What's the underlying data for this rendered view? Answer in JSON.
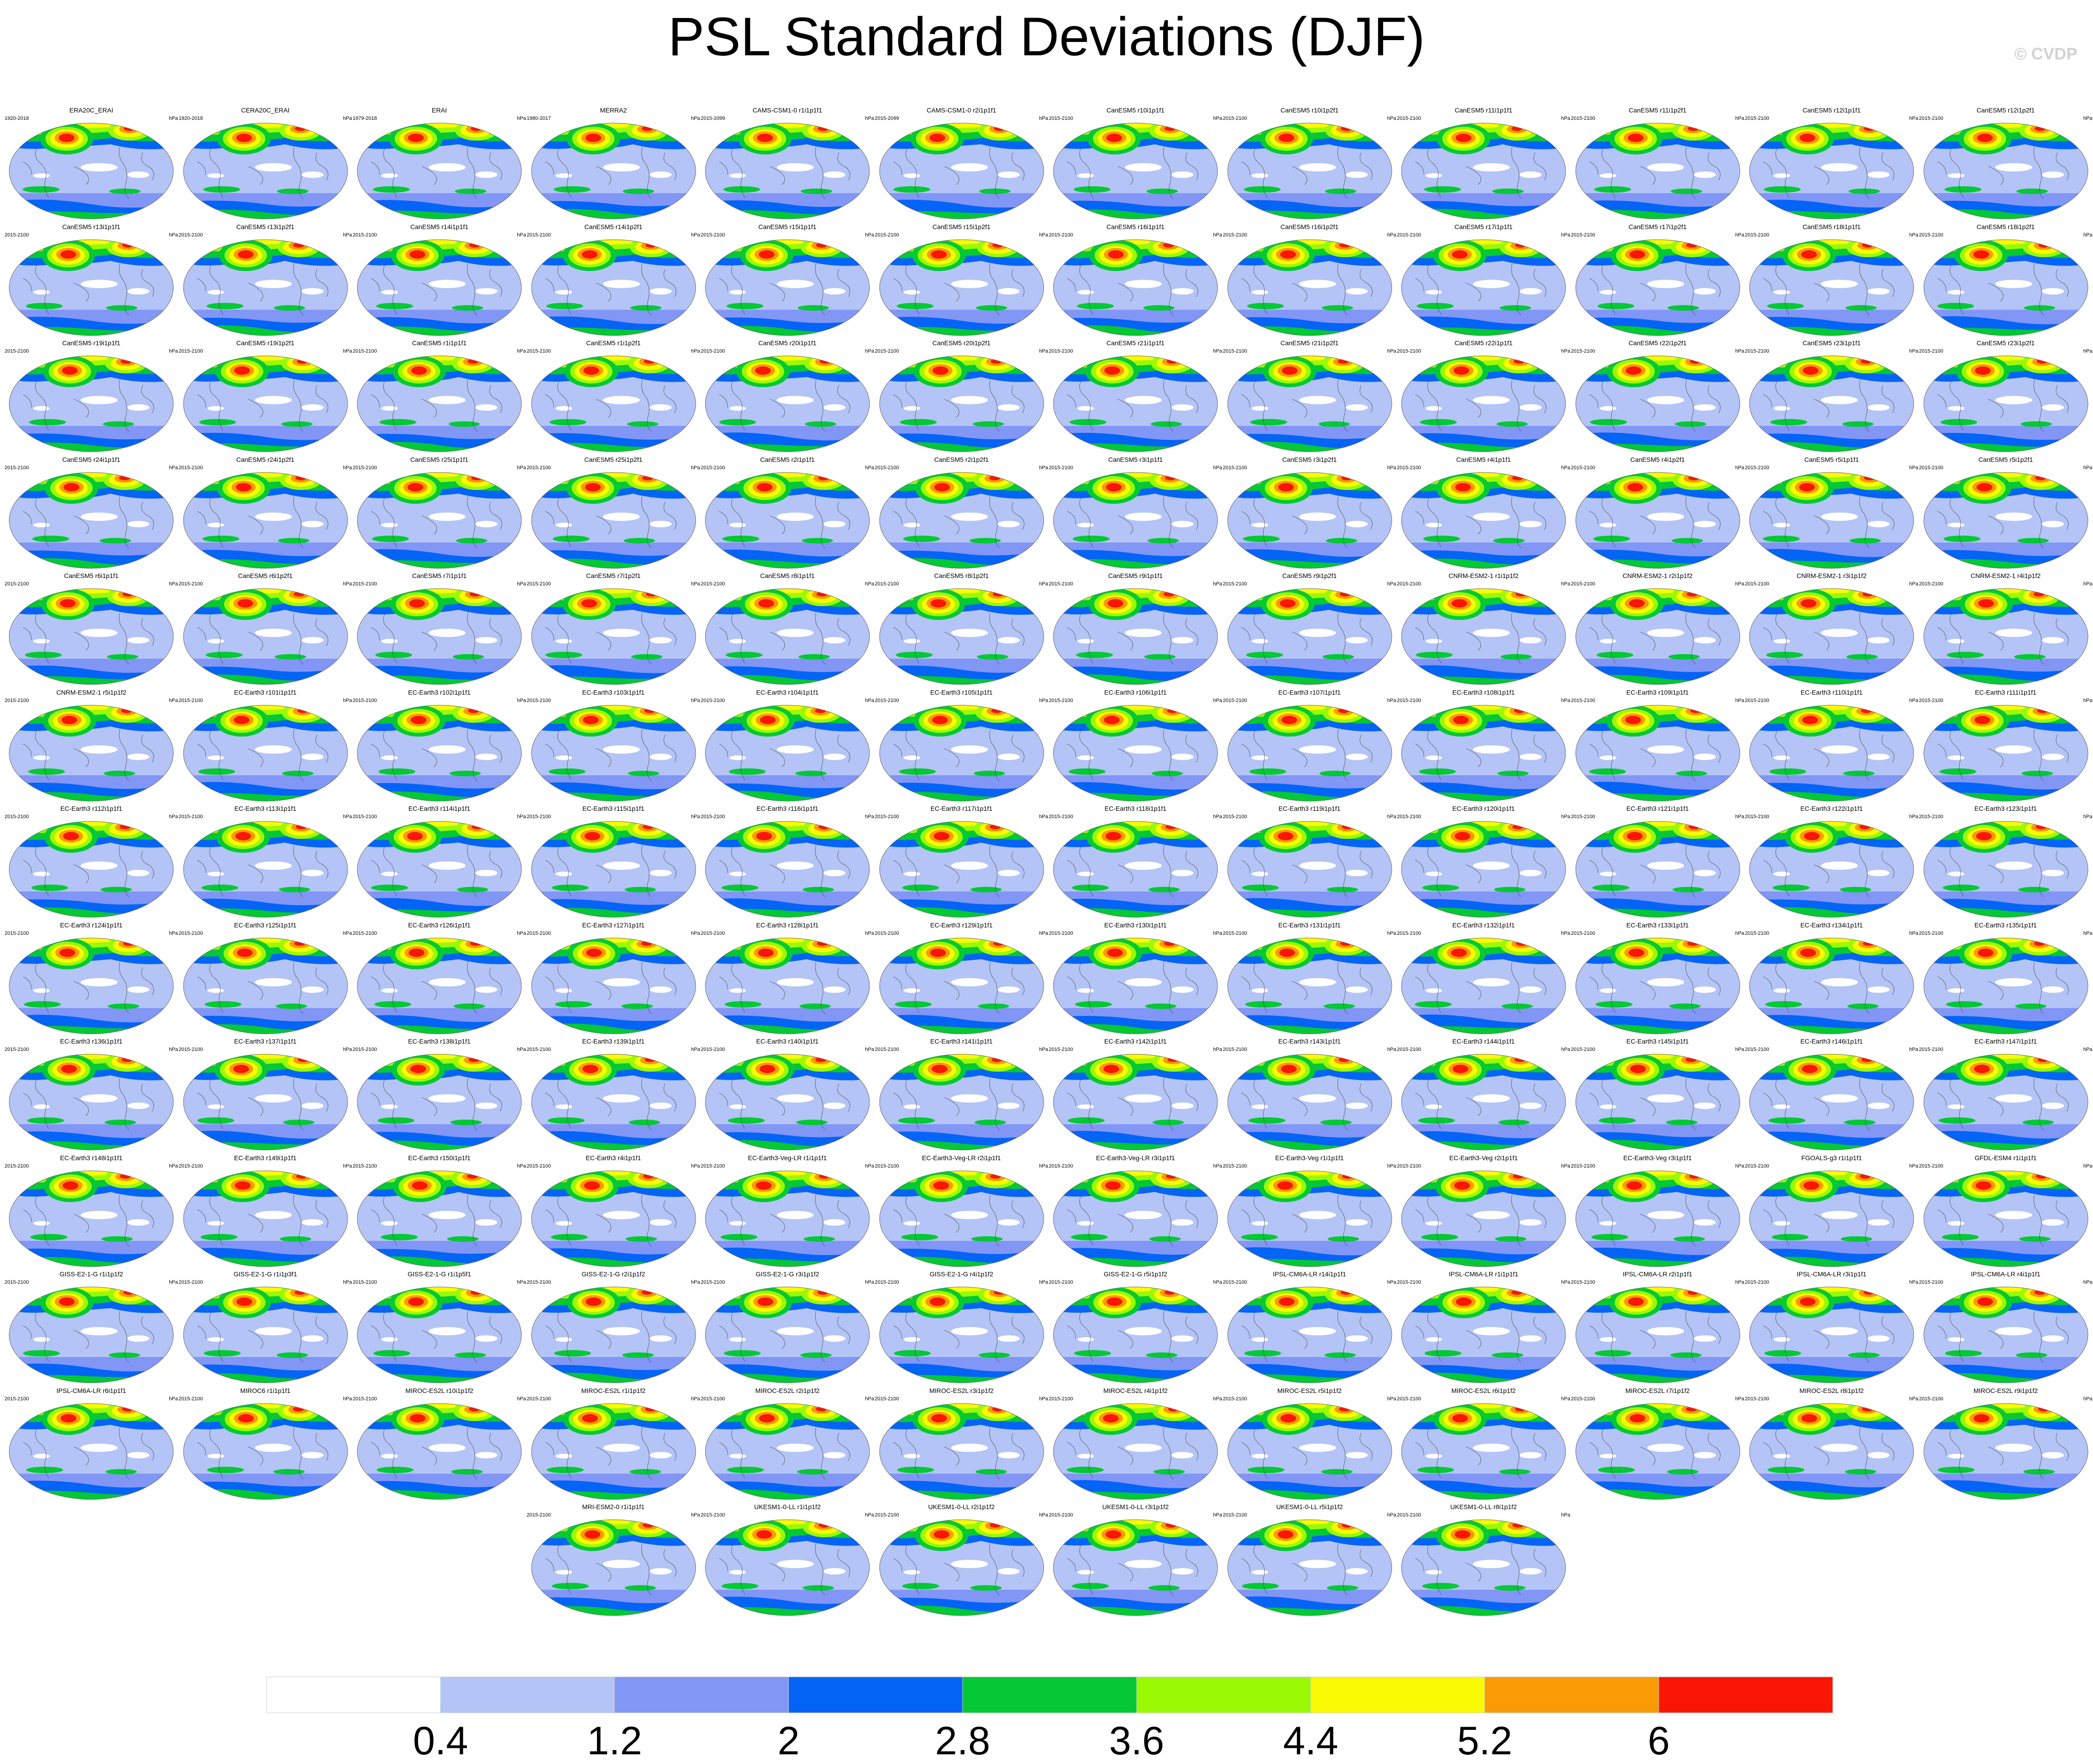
{
  "title": "PSL Standard Deviations (DJF)",
  "watermark": "© CVDP",
  "colors": [
    "#ffffff",
    "#b4c4f6",
    "#8296f6",
    "#0464f6",
    "#04c834",
    "#9afa04",
    "#fafa04",
    "#fa9a04",
    "#fa1604"
  ],
  "chart_data": {
    "type": "heatmap",
    "title": "PSL Standard Deviations (DJF)",
    "projection": "robinson",
    "units": "hPa",
    "colorbar": {
      "tick_labels": [
        "0.4",
        "1.2",
        "2",
        "2.8",
        "3.6",
        "4.4",
        "5.2",
        "6"
      ],
      "levels": [
        0.4,
        1.2,
        2,
        2.8,
        3.6,
        4.4,
        5.2,
        6
      ]
    },
    "panels": [
      {
        "title": "ERA20C_ERAI",
        "years": "1920-2018"
      },
      {
        "title": "CERA20C_ERAI",
        "years": "1920-2018"
      },
      {
        "title": "ERAI",
        "years": "1979-2018"
      },
      {
        "title": "MERRA2",
        "years": "1980-2017"
      },
      {
        "title": "CAMS-CSM1-0 r1i1p1f1",
        "years": "2015-2099"
      },
      {
        "title": "CAMS-CSM1-0 r2i1p1f1",
        "years": "2015-2099"
      },
      {
        "title": "CanESM5 r10i1p1f1",
        "years": "2015-2100"
      },
      {
        "title": "CanESM5 r10i1p2f1",
        "years": "2015-2100"
      },
      {
        "title": "CanESM5 r11i1p1f1",
        "years": "2015-2100"
      },
      {
        "title": "CanESM5 r11i1p2f1",
        "years": "2015-2100"
      },
      {
        "title": "CanESM5 r12i1p1f1",
        "years": "2015-2100"
      },
      {
        "title": "CanESM5 r12i1p2f1",
        "years": "2015-2100"
      },
      {
        "title": "CanESM5 r13i1p1f1",
        "years": "2015-2100"
      },
      {
        "title": "CanESM5 r13i1p2f1",
        "years": "2015-2100"
      },
      {
        "title": "CanESM5 r14i1p1f1",
        "years": "2015-2100"
      },
      {
        "title": "CanESM5 r14i1p2f1",
        "years": "2015-2100"
      },
      {
        "title": "CanESM5 r15i1p1f1",
        "years": "2015-2100"
      },
      {
        "title": "CanESM5 r15i1p2f1",
        "years": "2015-2100"
      },
      {
        "title": "CanESM5 r16i1p1f1",
        "years": "2015-2100"
      },
      {
        "title": "CanESM5 r16i1p2f1",
        "years": "2015-2100"
      },
      {
        "title": "CanESM5 r17i1p1f1",
        "years": "2015-2100"
      },
      {
        "title": "CanESM5 r17i1p2f1",
        "years": "2015-2100"
      },
      {
        "title": "CanESM5 r18i1p1f1",
        "years": "2015-2100"
      },
      {
        "title": "CanESM5 r18i1p2f1",
        "years": "2015-2100"
      },
      {
        "title": "CanESM5 r19i1p1f1",
        "years": "2015-2100"
      },
      {
        "title": "CanESM5 r19i1p2f1",
        "years": "2015-2100"
      },
      {
        "title": "CanESM5 r1i1p1f1",
        "years": "2015-2100"
      },
      {
        "title": "CanESM5 r1i1p2f1",
        "years": "2015-2100"
      },
      {
        "title": "CanESM5 r20i1p1f1",
        "years": "2015-2100"
      },
      {
        "title": "CanESM5 r20i1p2f1",
        "years": "2015-2100"
      },
      {
        "title": "CanESM5 r21i1p1f1",
        "years": "2015-2100"
      },
      {
        "title": "CanESM5 r21i1p2f1",
        "years": "2015-2100"
      },
      {
        "title": "CanESM5 r22i1p1f1",
        "years": "2015-2100"
      },
      {
        "title": "CanESM5 r22i1p2f1",
        "years": "2015-2100"
      },
      {
        "title": "CanESM5 r23i1p1f1",
        "years": "2015-2100"
      },
      {
        "title": "CanESM5 r23i1p2f1",
        "years": "2015-2100"
      },
      {
        "title": "CanESM5 r24i1p1f1",
        "years": "2015-2100"
      },
      {
        "title": "CanESM5 r24i1p2f1",
        "years": "2015-2100"
      },
      {
        "title": "CanESM5 r25i1p1f1",
        "years": "2015-2100"
      },
      {
        "title": "CanESM5 r25i1p2f1",
        "years": "2015-2100"
      },
      {
        "title": "CanESM5 r2i1p1f1",
        "years": "2015-2100"
      },
      {
        "title": "CanESM5 r2i1p2f1",
        "years": "2015-2100"
      },
      {
        "title": "CanESM5 r3i1p1f1",
        "years": "2015-2100"
      },
      {
        "title": "CanESM5 r3i1p2f1",
        "years": "2015-2100"
      },
      {
        "title": "CanESM5 r4i1p1f1",
        "years": "2015-2100"
      },
      {
        "title": "CanESM5 r4i1p2f1",
        "years": "2015-2100"
      },
      {
        "title": "CanESM5 r5i1p1f1",
        "years": "2015-2100"
      },
      {
        "title": "CanESM5 r5i1p2f1",
        "years": "2015-2100"
      },
      {
        "title": "CanESM5 r6i1p1f1",
        "years": "2015-2100"
      },
      {
        "title": "CanESM5 r6i1p2f1",
        "years": "2015-2100"
      },
      {
        "title": "CanESM5 r7i1p1f1",
        "years": "2015-2100"
      },
      {
        "title": "CanESM5 r7i1p2f1",
        "years": "2015-2100"
      },
      {
        "title": "CanESM5 r8i1p1f1",
        "years": "2015-2100"
      },
      {
        "title": "CanESM5 r8i1p2f1",
        "years": "2015-2100"
      },
      {
        "title": "CanESM5 r9i1p1f1",
        "years": "2015-2100"
      },
      {
        "title": "CanESM5 r9i1p2f1",
        "years": "2015-2100"
      },
      {
        "title": "CNRM-ESM2-1 r1i1p1f2",
        "years": "2015-2100"
      },
      {
        "title": "CNRM-ESM2-1 r2i1p1f2",
        "years": "2015-2100"
      },
      {
        "title": "CNRM-ESM2-1 r3i1p1f2",
        "years": "2015-2100"
      },
      {
        "title": "CNRM-ESM2-1 r4i1p1f2",
        "years": "2015-2100"
      },
      {
        "title": "CNRM-ESM2-1 r5i1p1f2",
        "years": "2015-2100"
      },
      {
        "title": "EC-Earth3 r101i1p1f1",
        "years": "2015-2100"
      },
      {
        "title": "EC-Earth3 r102i1p1f1",
        "years": "2015-2100"
      },
      {
        "title": "EC-Earth3 r103i1p1f1",
        "years": "2015-2100"
      },
      {
        "title": "EC-Earth3 r104i1p1f1",
        "years": "2015-2100"
      },
      {
        "title": "EC-Earth3 r105i1p1f1",
        "years": "2015-2100"
      },
      {
        "title": "EC-Earth3 r106i1p1f1",
        "years": "2015-2100"
      },
      {
        "title": "EC-Earth3 r107i1p1f1",
        "years": "2015-2100"
      },
      {
        "title": "EC-Earth3 r108i1p1f1",
        "years": "2015-2100"
      },
      {
        "title": "EC-Earth3 r109i1p1f1",
        "years": "2015-2100"
      },
      {
        "title": "EC-Earth3 r110i1p1f1",
        "years": "2015-2100"
      },
      {
        "title": "EC-Earth3 r111i1p1f1",
        "years": "2015-2100"
      },
      {
        "title": "EC-Earth3 r112i1p1f1",
        "years": "2015-2100"
      },
      {
        "title": "EC-Earth3 r113i1p1f1",
        "years": "2015-2100"
      },
      {
        "title": "EC-Earth3 r114i1p1f1",
        "years": "2015-2100"
      },
      {
        "title": "EC-Earth3 r115i1p1f1",
        "years": "2015-2100"
      },
      {
        "title": "EC-Earth3 r116i1p1f1",
        "years": "2015-2100"
      },
      {
        "title": "EC-Earth3 r117i1p1f1",
        "years": "2015-2100"
      },
      {
        "title": "EC-Earth3 r118i1p1f1",
        "years": "2015-2100"
      },
      {
        "title": "EC-Earth3 r119i1p1f1",
        "years": "2015-2100"
      },
      {
        "title": "EC-Earth3 r120i1p1f1",
        "years": "2015-2100"
      },
      {
        "title": "EC-Earth3 r121i1p1f1",
        "years": "2015-2100"
      },
      {
        "title": "EC-Earth3 r122i1p1f1",
        "years": "2015-2100"
      },
      {
        "title": "EC-Earth3 r123i1p1f1",
        "years": "2015-2100"
      },
      {
        "title": "EC-Earth3 r124i1p1f1",
        "years": "2015-2100"
      },
      {
        "title": "EC-Earth3 r125i1p1f1",
        "years": "2015-2100"
      },
      {
        "title": "EC-Earth3 r126i1p1f1",
        "years": "2015-2100"
      },
      {
        "title": "EC-Earth3 r127i1p1f1",
        "years": "2015-2100"
      },
      {
        "title": "EC-Earth3 r128i1p1f1",
        "years": "2015-2100"
      },
      {
        "title": "EC-Earth3 r129i1p1f1",
        "years": "2015-2100"
      },
      {
        "title": "EC-Earth3 r130i1p1f1",
        "years": "2015-2100"
      },
      {
        "title": "EC-Earth3 r131i1p1f1",
        "years": "2015-2100"
      },
      {
        "title": "EC-Earth3 r132i1p1f1",
        "years": "2015-2100"
      },
      {
        "title": "EC-Earth3 r133i1p1f1",
        "years": "2015-2100"
      },
      {
        "title": "EC-Earth3 r134i1p1f1",
        "years": "2015-2100"
      },
      {
        "title": "EC-Earth3 r135i1p1f1",
        "years": "2015-2100"
      },
      {
        "title": "EC-Earth3 r136i1p1f1",
        "years": "2015-2100"
      },
      {
        "title": "EC-Earth3 r137i1p1f1",
        "years": "2015-2100"
      },
      {
        "title": "EC-Earth3 r138i1p1f1",
        "years": "2015-2100"
      },
      {
        "title": "EC-Earth3 r139i1p1f1",
        "years": "2015-2100"
      },
      {
        "title": "EC-Earth3 r140i1p1f1",
        "years": "2015-2100"
      },
      {
        "title": "EC-Earth3 r141i1p1f1",
        "years": "2015-2100"
      },
      {
        "title": "EC-Earth3 r142i1p1f1",
        "years": "2015-2100"
      },
      {
        "title": "EC-Earth3 r143i1p1f1",
        "years": "2015-2100"
      },
      {
        "title": "EC-Earth3 r144i1p1f1",
        "years": "2015-2100"
      },
      {
        "title": "EC-Earth3 r145i1p1f1",
        "years": "2015-2100"
      },
      {
        "title": "EC-Earth3 r146i1p1f1",
        "years": "2015-2100"
      },
      {
        "title": "EC-Earth3 r147i1p1f1",
        "years": "2015-2100"
      },
      {
        "title": "EC-Earth3 r148i1p1f1",
        "years": "2015-2100"
      },
      {
        "title": "EC-Earth3 r149i1p1f1",
        "years": "2015-2100"
      },
      {
        "title": "EC-Earth3 r150i1p1f1",
        "years": "2015-2100"
      },
      {
        "title": "EC-Earth3 r4i1p1f1",
        "years": "2015-2100"
      },
      {
        "title": "EC-Earth3-Veg-LR r1i1p1f1",
        "years": "2015-2100"
      },
      {
        "title": "EC-Earth3-Veg-LR r2i1p1f1",
        "years": "2015-2100"
      },
      {
        "title": "EC-Earth3-Veg-LR r3i1p1f1",
        "years": "2015-2100"
      },
      {
        "title": "EC-Earth3-Veg r1i1p1f1",
        "years": "2015-2100"
      },
      {
        "title": "EC-Earth3-Veg r2i1p1f1",
        "years": "2015-2100"
      },
      {
        "title": "EC-Earth3-Veg r3i1p1f1",
        "years": "2015-2100"
      },
      {
        "title": "FGOALS-g3 r1i1p1f1",
        "years": "2015-2100"
      },
      {
        "title": "GFDL-ESM4 r1i1p1f1",
        "years": "2015-2100"
      },
      {
        "title": "GISS-E2-1-G r1i1p1f2",
        "years": "2015-2100"
      },
      {
        "title": "GISS-E2-1-G r1i1p3f1",
        "years": "2015-2100"
      },
      {
        "title": "GISS-E2-1-G r1i1p5f1",
        "years": "2015-2100"
      },
      {
        "title": "GISS-E2-1-G r2i1p1f2",
        "years": "2015-2100"
      },
      {
        "title": "GISS-E2-1-G r3i1p1f2",
        "years": "2015-2100"
      },
      {
        "title": "GISS-E2-1-G r4i1p1f2",
        "years": "2015-2100"
      },
      {
        "title": "GISS-E2-1-G r5i1p1f2",
        "years": "2015-2100"
      },
      {
        "title": "IPSL-CM6A-LR r14i1p1f1",
        "years": "2015-2100"
      },
      {
        "title": "IPSL-CM6A-LR r1i1p1f1",
        "years": "2015-2100"
      },
      {
        "title": "IPSL-CM6A-LR r2i1p1f1",
        "years": "2015-2100"
      },
      {
        "title": "IPSL-CM6A-LR r3i1p1f1",
        "years": "2015-2100"
      },
      {
        "title": "IPSL-CM6A-LR r4i1p1f1",
        "years": "2015-2100"
      },
      {
        "title": "IPSL-CM6A-LR r6i1p1f1",
        "years": "2015-2100"
      },
      {
        "title": "MIROC6 r1i1p1f1",
        "years": "2015-2100"
      },
      {
        "title": "MIROC-ES2L r10i1p1f2",
        "years": "2015-2100"
      },
      {
        "title": "MIROC-ES2L r1i1p1f2",
        "years": "2015-2100"
      },
      {
        "title": "MIROC-ES2L r2i1p1f2",
        "years": "2015-2100"
      },
      {
        "title": "MIROC-ES2L r3i1p1f2",
        "years": "2015-2100"
      },
      {
        "title": "MIROC-ES2L r4i1p1f2",
        "years": "2015-2100"
      },
      {
        "title": "MIROC-ES2L r5i1p1f2",
        "years": "2015-2100"
      },
      {
        "title": "MIROC-ES2L r6i1p1f2",
        "years": "2015-2100"
      },
      {
        "title": "MIROC-ES2L r7i1p1f2",
        "years": "2015-2100"
      },
      {
        "title": "MIROC-ES2L r8i1p1f2",
        "years": "2015-2100"
      },
      {
        "title": "MIROC-ES2L r9i1p1f2",
        "years": "2015-2100"
      },
      {
        "title": "MRI-ESM2-0 r1i1p1f1",
        "years": "2015-2100"
      },
      {
        "title": "UKESM1-0-LL r1i1p1f2",
        "years": "2015-2100"
      },
      {
        "title": "UKESM1-0-LL r2i1p1f2",
        "years": "2015-2100"
      },
      {
        "title": "UKESM1-0-LL r3i1p1f2",
        "years": "2015-2100"
      },
      {
        "title": "UKESM1-0-LL r5i1p1f2",
        "years": "2015-2100"
      },
      {
        "title": "UKESM1-0-LL r8i1p1f2",
        "years": "2015-2100"
      }
    ]
  }
}
